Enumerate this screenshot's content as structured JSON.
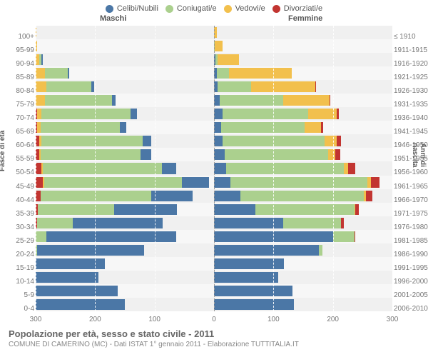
{
  "legend": [
    {
      "label": "Celibi/Nubili",
      "color": "#4b77a6"
    },
    {
      "label": "Coniugati/e",
      "color": "#abd08e"
    },
    {
      "label": "Vedovi/e",
      "color": "#f2c04d"
    },
    {
      "label": "Divorziati/e",
      "color": "#c23531"
    }
  ],
  "section_labels": {
    "male": "Maschi",
    "female": "Femmine"
  },
  "axis_titles": {
    "left": "Fasce di età",
    "right": "Anni di nascita"
  },
  "xticks": [
    300,
    200,
    100,
    0,
    100,
    200,
    300
  ],
  "x_max": 300,
  "colors": {
    "celibi": "#4b77a6",
    "coniugati": "#abd08e",
    "vedovi": "#f2c04d",
    "divorziati": "#c23531",
    "grid": "#ffffff",
    "center": "#999999",
    "bg_odd": "#f0f0f0",
    "bg_even": "#f7f7f7"
  },
  "typography": {
    "legend_fontsize": 11,
    "tick_fontsize": 10,
    "title_fontsize": 13,
    "subtitle_fontsize": 10,
    "font_family": "Arial"
  },
  "rows": [
    {
      "age": "100+",
      "year": "≤ 1910",
      "m": [
        0,
        0,
        1,
        0
      ],
      "f": [
        0,
        0,
        5,
        0
      ]
    },
    {
      "age": "95-99",
      "year": "1911-1915",
      "m": [
        0,
        0,
        2,
        0
      ],
      "f": [
        0,
        1,
        13,
        0
      ]
    },
    {
      "age": "90-94",
      "year": "1916-1920",
      "m": [
        2,
        4,
        6,
        0
      ],
      "f": [
        2,
        4,
        36,
        0
      ]
    },
    {
      "age": "85-89",
      "year": "1921-1925",
      "m": [
        3,
        38,
        16,
        0
      ],
      "f": [
        5,
        20,
        106,
        0
      ]
    },
    {
      "age": "80-84",
      "year": "1926-1930",
      "m": [
        4,
        76,
        18,
        0
      ],
      "f": [
        6,
        56,
        108,
        1
      ]
    },
    {
      "age": "75-79",
      "year": "1931-1935",
      "m": [
        6,
        112,
        16,
        0
      ],
      "f": [
        10,
        106,
        78,
        2
      ]
    },
    {
      "age": "70-74",
      "year": "1936-1940",
      "m": [
        10,
        150,
        8,
        2
      ],
      "f": [
        14,
        144,
        48,
        4
      ]
    },
    {
      "age": "65-69",
      "year": "1941-1945",
      "m": [
        10,
        134,
        6,
        2
      ],
      "f": [
        12,
        140,
        28,
        4
      ]
    },
    {
      "age": "60-64",
      "year": "1946-1950",
      "m": [
        14,
        170,
        4,
        6
      ],
      "f": [
        14,
        172,
        20,
        8
      ]
    },
    {
      "age": "55-59",
      "year": "1951-1955",
      "m": [
        18,
        168,
        2,
        6
      ],
      "f": [
        18,
        174,
        12,
        8
      ]
    },
    {
      "age": "50-54",
      "year": "1956-1960",
      "m": [
        24,
        200,
        2,
        10
      ],
      "f": [
        20,
        198,
        8,
        12
      ]
    },
    {
      "age": "45-49",
      "year": "1961-1965",
      "m": [
        46,
        232,
        2,
        12
      ],
      "f": [
        28,
        230,
        6,
        14
      ]
    },
    {
      "age": "40-44",
      "year": "1966-1970",
      "m": [
        70,
        186,
        0,
        8
      ],
      "f": [
        44,
        208,
        4,
        10
      ]
    },
    {
      "age": "35-39",
      "year": "1971-1975",
      "m": [
        106,
        128,
        0,
        4
      ],
      "f": [
        70,
        166,
        2,
        6
      ]
    },
    {
      "age": "30-34",
      "year": "1976-1980",
      "m": [
        152,
        60,
        0,
        2
      ],
      "f": [
        116,
        98,
        0,
        4
      ]
    },
    {
      "age": "25-29",
      "year": "1981-1985",
      "m": [
        218,
        18,
        0,
        0
      ],
      "f": [
        200,
        36,
        0,
        2
      ]
    },
    {
      "age": "20-24",
      "year": "1986-1990",
      "m": [
        180,
        2,
        0,
        0
      ],
      "f": [
        176,
        6,
        0,
        0
      ]
    },
    {
      "age": "15-19",
      "year": "1991-1995",
      "m": [
        116,
        0,
        0,
        0
      ],
      "f": [
        118,
        0,
        0,
        0
      ]
    },
    {
      "age": "10-14",
      "year": "1996-2000",
      "m": [
        106,
        0,
        0,
        0
      ],
      "f": [
        108,
        0,
        0,
        0
      ]
    },
    {
      "age": "5-9",
      "year": "2001-2005",
      "m": [
        138,
        0,
        0,
        0
      ],
      "f": [
        132,
        0,
        0,
        0
      ]
    },
    {
      "age": "0-4",
      "year": "2006-2010",
      "m": [
        150,
        0,
        0,
        0
      ],
      "f": [
        134,
        0,
        0,
        0
      ]
    }
  ],
  "footer": {
    "title": "Popolazione per età, sesso e stato civile - 2011",
    "subtitle": "COMUNE DI CAMERINO (MC) - Dati ISTAT 1° gennaio 2011 - Elaborazione TUTTITALIA.IT"
  }
}
